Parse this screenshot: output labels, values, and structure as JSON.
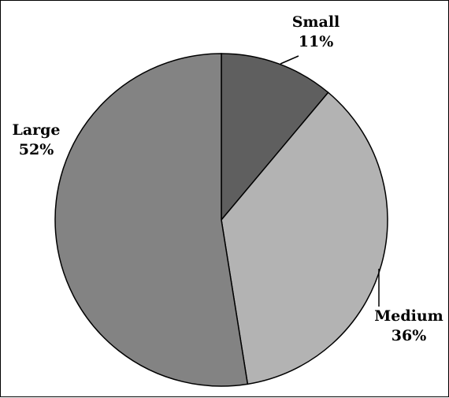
{
  "chart_data": {
    "type": "pie",
    "title": "",
    "slices": [
      {
        "label": "Small",
        "value": 11,
        "display": "11%",
        "color": "#5f5f5f"
      },
      {
        "label": "Medium",
        "value": 36,
        "display": "36%",
        "color": "#b3b3b3"
      },
      {
        "label": "Large",
        "value": 52,
        "display": "52%",
        "color": "#838383"
      }
    ],
    "start_angle_deg": 0,
    "direction": "clockwise",
    "legend": "none",
    "data_labels": "outside with category name and percent"
  }
}
